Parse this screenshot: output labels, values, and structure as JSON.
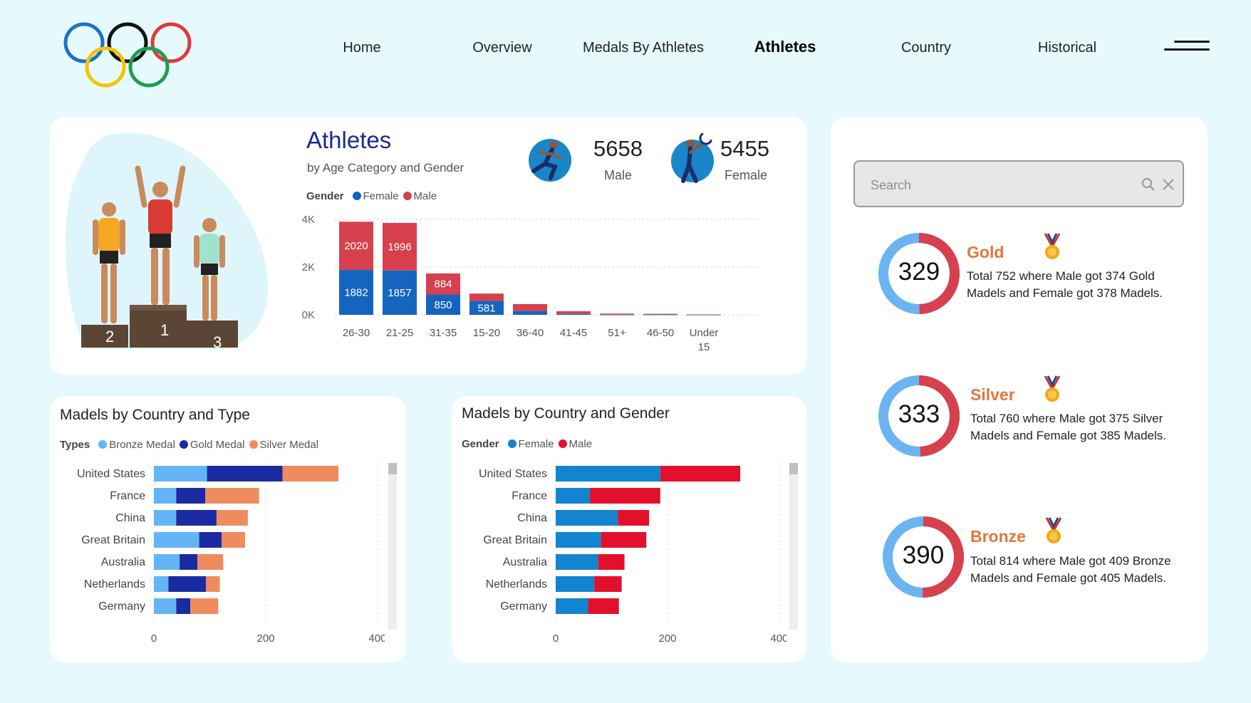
{
  "nav": {
    "items": [
      "Home",
      "Overview",
      "Medals By Athletes",
      "Athletes",
      "Country",
      "Historical"
    ],
    "active": "Athletes"
  },
  "athletes_card": {
    "title": "Athletes",
    "subtitle": "by Age Category and Gender",
    "legend_title": "Gender",
    "legend": [
      {
        "name": "Female",
        "color": "#1565c0"
      },
      {
        "name": "Male",
        "color": "#d6414d"
      }
    ],
    "podium_labels": [
      "2",
      "1",
      "3"
    ],
    "male": {
      "value": "5658",
      "label": "Male"
    },
    "female": {
      "value": "5455",
      "label": "Female"
    }
  },
  "search": {
    "placeholder": "Search"
  },
  "medals": [
    {
      "name": "Gold",
      "count": "329",
      "desc": "Total 752 where Male got 374 Gold Madels and Female got 378 Madels.",
      "male": 374,
      "female": 378,
      "icon": "gold-medal-icon"
    },
    {
      "name": "Silver",
      "count": "333",
      "desc": "Total 760 where Male got 375 Silver Madels and Female got 385 Madels.",
      "male": 375,
      "female": 385,
      "icon": "silver-medal-icon"
    },
    {
      "name": "Bronze",
      "count": "390",
      "desc": "Total 814 where Male got 409 Bronze Madels and Female got 405 Madels.",
      "male": 409,
      "female": 405,
      "icon": "bronze-medal-icon"
    }
  ],
  "type_card": {
    "title": "Madels by Country and Type",
    "legend_title": "Types",
    "legend": [
      {
        "name": "Bronze Medal",
        "color": "#64b5f6"
      },
      {
        "name": "Gold Medal",
        "color": "#1a2aa0"
      },
      {
        "name": "Silver Medal",
        "color": "#ef8c5f"
      }
    ]
  },
  "gender_card": {
    "title": "Madels by Country and Gender",
    "legend_title": "Gender",
    "legend": [
      {
        "name": "Female",
        "color": "#1384cf"
      },
      {
        "name": "Male",
        "color": "#e3102c"
      }
    ]
  },
  "chart_data": [
    {
      "type": "bar",
      "stacked": true,
      "orientation": "vertical",
      "title": "Athletes",
      "subtitle": "by Age Category and Gender",
      "categories": [
        "26-30",
        "21-25",
        "31-35",
        "15-20",
        "36-40",
        "41-45",
        "51+",
        "46-50",
        "Under 15"
      ],
      "series": [
        {
          "name": "Female",
          "color": "#1565c0",
          "values": [
            1882,
            1857,
            850,
            581,
            160,
            40,
            10,
            12,
            6
          ]
        },
        {
          "name": "Male",
          "color": "#d6414d",
          "values": [
            2020,
            1996,
            884,
            310,
            290,
            110,
            40,
            30,
            10
          ]
        }
      ],
      "data_labels": [
        [
          1882,
          1857,
          850,
          581,
          null,
          null,
          null,
          null,
          null
        ],
        [
          2020,
          1996,
          884,
          null,
          null,
          null,
          null,
          null,
          null
        ]
      ],
      "yticks": [
        "0K",
        "2K",
        "4K"
      ],
      "ylim": [
        0,
        4000
      ],
      "grid": true
    },
    {
      "type": "bar",
      "stacked": true,
      "orientation": "horizontal",
      "title": "Madels by Country and Type",
      "categories": [
        "United States",
        "France",
        "China",
        "Great Britain",
        "Australia",
        "Netherlands",
        "Germany"
      ],
      "series": [
        {
          "name": "Bronze Medal",
          "color": "#64b5f6",
          "values": [
            95,
            40,
            40,
            81,
            46,
            26,
            40
          ]
        },
        {
          "name": "Gold Medal",
          "color": "#1a2aa0",
          "values": [
            135,
            52,
            72,
            40,
            32,
            67,
            25
          ]
        },
        {
          "name": "Silver Medal",
          "color": "#ef8c5f",
          "values": [
            100,
            96,
            56,
            42,
            46,
            25,
            50
          ]
        }
      ],
      "xticks": [
        0,
        200,
        400
      ],
      "xlim": [
        0,
        400
      ]
    },
    {
      "type": "bar",
      "stacked": true,
      "orientation": "horizontal",
      "title": "Madels by Country and Gender",
      "categories": [
        "United States",
        "France",
        "China",
        "Great Britain",
        "Australia",
        "Netherlands",
        "Germany"
      ],
      "series": [
        {
          "name": "Female",
          "color": "#1384cf",
          "values": [
            187,
            61,
            111,
            81,
            76,
            69,
            58
          ]
        },
        {
          "name": "Male",
          "color": "#e3102c",
          "values": [
            143,
            126,
            56,
            81,
            47,
            49,
            55
          ]
        }
      ],
      "xticks": [
        0,
        200,
        400
      ],
      "xlim": [
        0,
        400
      ]
    }
  ]
}
